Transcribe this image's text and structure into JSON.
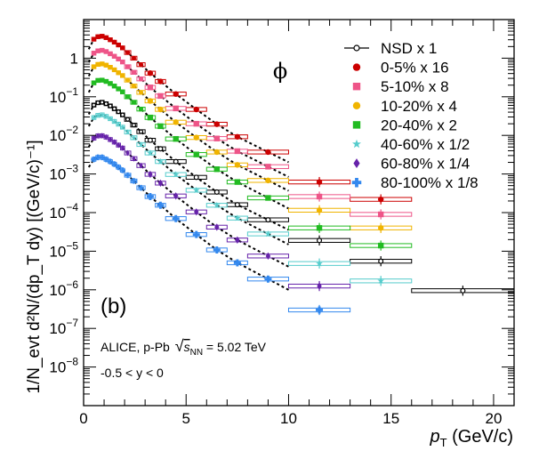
{
  "chart_data": {
    "type": "scatter",
    "title": "",
    "panel_label": "(b)",
    "particle_symbol": "ϕ",
    "x_axis": {
      "label_var": "p",
      "label_sub": "T",
      "label_units": " (GeV/c)",
      "lim": [
        0,
        21
      ],
      "ticks": [
        0,
        5,
        10,
        15,
        20
      ],
      "tick_labels": [
        "0",
        "5",
        "10",
        "15",
        "20"
      ]
    },
    "y_axis": {
      "label": "1/N_evt d²N/(dp_T dy) [(GeV/c)⁻¹]",
      "scale": "log",
      "lim": [
        1e-09,
        10
      ],
      "ticks": [
        1,
        0.1,
        0.01,
        0.001,
        0.0001,
        1e-05,
        1e-06,
        1e-07,
        1e-08
      ],
      "tick_labels": [
        {
          "base": "1",
          "exp": ""
        },
        {
          "base": "10",
          "exp": "−1"
        },
        {
          "base": "10",
          "exp": "−2"
        },
        {
          "base": "10",
          "exp": "−3"
        },
        {
          "base": "10",
          "exp": "−4"
        },
        {
          "base": "10",
          "exp": "−5"
        },
        {
          "base": "10",
          "exp": "−6"
        },
        {
          "base": "10",
          "exp": "−7"
        },
        {
          "base": "10",
          "exp": "−8"
        }
      ]
    },
    "annotation": {
      "line1_pre": "ALICE, p-Pb ",
      "line1_sqrt": "s",
      "line1_sub": "NN",
      "line1_post": " = 5.02 TeV",
      "line2": "-0.5 < y < 0"
    },
    "x_bins": [
      [
        0.4,
        0.6
      ],
      [
        0.6,
        0.8
      ],
      [
        0.8,
        1.0
      ],
      [
        1.0,
        1.2
      ],
      [
        1.2,
        1.4
      ],
      [
        1.4,
        1.6
      ],
      [
        1.6,
        1.8
      ],
      [
        1.8,
        2.0
      ],
      [
        2.0,
        2.3
      ],
      [
        2.3,
        2.6
      ],
      [
        2.6,
        3.0
      ],
      [
        3.0,
        3.5
      ],
      [
        3.5,
        4.0
      ],
      [
        4.0,
        5.0
      ],
      [
        5.0,
        6.0
      ],
      [
        6.0,
        7.0
      ],
      [
        7.0,
        8.0
      ],
      [
        8.0,
        10.0
      ],
      [
        10.0,
        13.0
      ],
      [
        13.0,
        16.0
      ],
      [
        16.0,
        21.0
      ]
    ],
    "x_centers": [
      0.5,
      0.7,
      0.9,
      1.1,
      1.3,
      1.5,
      1.7,
      1.9,
      2.15,
      2.45,
      2.8,
      3.25,
      3.75,
      4.5,
      5.5,
      6.5,
      7.5,
      9.0,
      11.5,
      14.5,
      18.5
    ],
    "series": [
      {
        "name": "NSD x 1",
        "color": "#000000",
        "marker": "open-circle",
        "fit": true,
        "values": [
          0.061,
          0.07,
          0.072,
          0.066,
          0.058,
          0.049,
          0.041,
          0.034,
          0.026,
          0.0185,
          0.0125,
          0.0075,
          0.0045,
          0.0021,
          0.00082,
          0.00034,
          0.00016,
          6.5e-05,
          1.9e-05,
          5.5e-06,
          9.5e-07
        ]
      },
      {
        "name": "0-5% x 16",
        "color": "#cc0000",
        "marker": "circle",
        "fit": true,
        "values": [
          3.1,
          3.6,
          3.7,
          3.4,
          3.0,
          2.6,
          2.2,
          1.85,
          1.4,
          1.0,
          0.68,
          0.41,
          0.25,
          0.118,
          0.047,
          0.0195,
          0.0092,
          0.0037,
          0.00062,
          0.00022
        ]
      },
      {
        "name": "5-10% x 8",
        "color": "#ee5588",
        "marker": "square",
        "fit": true,
        "values": [
          1.35,
          1.55,
          1.6,
          1.48,
          1.3,
          1.12,
          0.95,
          0.8,
          0.6,
          0.43,
          0.29,
          0.175,
          0.105,
          0.05,
          0.02,
          0.0083,
          0.0039,
          0.00155,
          0.00026,
          9e-05
        ]
      },
      {
        "name": "10-20% x 4",
        "color": "#f0b400",
        "marker": "circle",
        "fit": true,
        "values": [
          0.6,
          0.69,
          0.71,
          0.66,
          0.58,
          0.5,
          0.42,
          0.355,
          0.27,
          0.19,
          0.13,
          0.078,
          0.047,
          0.022,
          0.0088,
          0.0037,
          0.00172,
          0.00068,
          0.000115,
          4e-05
        ]
      },
      {
        "name": "20-40% x 2",
        "color": "#22bb22",
        "marker": "square",
        "fit": true,
        "values": [
          0.23,
          0.265,
          0.27,
          0.25,
          0.22,
          0.19,
          0.16,
          0.134,
          0.1,
          0.072,
          0.048,
          0.029,
          0.0173,
          0.0081,
          0.0032,
          0.00133,
          0.00062,
          0.00024,
          4e-05,
          1.4e-05
        ]
      },
      {
        "name": "40-60% x 1/2",
        "color": "#55cccc",
        "marker": "star",
        "fit": true,
        "values": [
          0.029,
          0.033,
          0.034,
          0.031,
          0.027,
          0.023,
          0.0195,
          0.0163,
          0.0122,
          0.0087,
          0.0058,
          0.0035,
          0.0021,
          0.00097,
          0.00038,
          0.000155,
          7.2e-05,
          2.8e-05,
          4.8e-06,
          1.7e-06
        ]
      },
      {
        "name": "60-80% x 1/4",
        "color": "#6622aa",
        "marker": "diamond",
        "fit": true,
        "values": [
          0.0085,
          0.0097,
          0.0098,
          0.009,
          0.0078,
          0.0067,
          0.0056,
          0.0047,
          0.0035,
          0.0025,
          0.00165,
          0.00098,
          0.00058,
          0.00027,
          0.000104,
          4.2e-05,
          1.95e-05,
          7.5e-06,
          1.25e-06
        ]
      },
      {
        "name": "80-100% x 1/8",
        "color": "#3388ee",
        "marker": "cross",
        "fit": true,
        "values": [
          0.0024,
          0.0027,
          0.0027,
          0.0024,
          0.0021,
          0.0018,
          0.0015,
          0.00125,
          0.00093,
          0.00066,
          0.00044,
          0.00026,
          0.000155,
          7e-05,
          2.7e-05,
          1.08e-05,
          5e-06,
          1.9e-06,
          3e-07
        ]
      }
    ]
  }
}
